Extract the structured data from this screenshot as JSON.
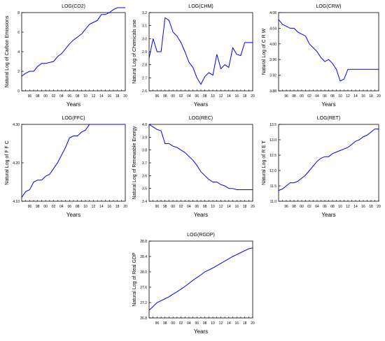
{
  "chart_data": [
    {
      "type": "line",
      "title": "LOG(CO2)",
      "ylabel": "Natural Log of Carbon Emissions",
      "xlabel": "Years",
      "x": [
        1994,
        1995,
        1996,
        1997,
        1998,
        1999,
        2000,
        2001,
        2002,
        2003,
        2004,
        2005,
        2006,
        2007,
        2008,
        2009,
        2010,
        2011,
        2012,
        2013,
        2014,
        2015,
        2016,
        2017,
        2018,
        2019,
        2020
      ],
      "y": [
        1.5,
        1.8,
        2.0,
        2.0,
        2.5,
        2.8,
        2.8,
        2.9,
        3.0,
        3.5,
        3.8,
        4.3,
        4.8,
        5.2,
        5.5,
        5.8,
        6.3,
        6.8,
        7.0,
        7.2,
        7.8,
        7.8,
        8.0,
        8.3,
        8.5,
        8.5,
        8.5
      ],
      "ylim": [
        0,
        8
      ],
      "xticks": [
        1996,
        1998,
        2000,
        2002,
        2004,
        2006,
        2008,
        2010,
        2012,
        2014,
        2016,
        2018,
        2020
      ],
      "xtick_labels": [
        "96",
        "98",
        "00",
        "02",
        "04",
        "06",
        "08",
        "10",
        "12",
        "14",
        "16",
        "18",
        "20"
      ],
      "yticks": [
        0,
        2,
        4,
        6,
        8
      ],
      "ytick_labels": [
        "0",
        "2",
        "4",
        "6",
        "8"
      ],
      "line_color": "#0000ff"
    },
    {
      "type": "line",
      "title": "LOG(CHM)",
      "ylabel": "Natural Log of Chemicals use",
      "xlabel": "Years",
      "x": [
        1994,
        1995,
        1996,
        1997,
        1998,
        1999,
        2000,
        2001,
        2002,
        2003,
        2004,
        2005,
        2006,
        2007,
        2008,
        2009,
        2010,
        2011,
        2012,
        2013,
        2014,
        2015,
        2016,
        2017,
        2018,
        2019,
        2020
      ],
      "y": [
        2.85,
        3.0,
        2.9,
        2.9,
        3.16,
        3.14,
        3.05,
        3.02,
        2.97,
        2.9,
        2.82,
        2.78,
        2.7,
        2.65,
        2.71,
        2.74,
        2.72,
        2.88,
        2.77,
        2.8,
        2.78,
        2.93,
        2.88,
        2.87,
        2.97,
        2.97,
        2.97
      ],
      "ylim": [
        2.6,
        3.2
      ],
      "xticks": [
        1996,
        1998,
        2000,
        2002,
        2004,
        2006,
        2008,
        2010,
        2012,
        2014,
        2016,
        2018,
        2020
      ],
      "xtick_labels": [
        "96",
        "98",
        "00",
        "02",
        "04",
        "06",
        "08",
        "10",
        "12",
        "14",
        "16",
        "18",
        "20"
      ],
      "yticks": [
        2.6,
        2.7,
        2.8,
        2.9,
        3.0,
        3.1,
        3.2
      ],
      "ytick_labels": [
        "2.6",
        "2.7",
        "2.8",
        "2.9",
        "3.0",
        "3.1",
        "3.2"
      ],
      "line_color": "#0000ff"
    },
    {
      "type": "line",
      "title": "LOG(CRW)",
      "ylabel": "Natural Log of C R W",
      "xlabel": "Years",
      "x": [
        1994,
        1995,
        1996,
        1997,
        1998,
        1999,
        2000,
        2001,
        2002,
        2003,
        2004,
        2005,
        2006,
        2007,
        2008,
        2009,
        2010,
        2011,
        2012,
        2013,
        2014,
        2015,
        2016,
        2017,
        2018,
        2019,
        2020
      ],
      "y": [
        4.062,
        4.05,
        4.045,
        4.04,
        4.04,
        4.03,
        4.025,
        4.02,
        4.0,
        3.99,
        3.98,
        3.965,
        3.955,
        3.96,
        3.95,
        3.935,
        3.905,
        3.91,
        3.935,
        3.935,
        3.935,
        3.935,
        3.935,
        3.935,
        3.935,
        3.935,
        3.935
      ],
      "ylim": [
        3.88,
        4.08
      ],
      "xticks": [
        1996,
        1998,
        2000,
        2002,
        2004,
        2006,
        2008,
        2010,
        2012,
        2014,
        2016,
        2018,
        2020
      ],
      "xtick_labels": [
        "96",
        "98",
        "00",
        "02",
        "04",
        "06",
        "08",
        "10",
        "12",
        "14",
        "16",
        "18",
        "20"
      ],
      "yticks": [
        3.88,
        3.92,
        3.96,
        4.0,
        4.04,
        4.08
      ],
      "ytick_labels": [
        "3.88",
        "3.92",
        "3.96",
        "4.00",
        "4.04",
        "4.08"
      ],
      "line_color": "#0000ff"
    },
    {
      "type": "line",
      "title": "LOG(FFC)",
      "ylabel": "Natural Log of F F C",
      "xlabel": "Years",
      "x": [
        1994,
        1995,
        1996,
        1997,
        1998,
        1999,
        2000,
        2001,
        2002,
        2003,
        2004,
        2005,
        2006,
        2007,
        2008,
        2009,
        2010,
        2011,
        2012,
        2013,
        2014,
        2015,
        2016,
        2017,
        2018,
        2019,
        2020
      ],
      "y": [
        4.11,
        4.125,
        4.13,
        4.15,
        4.155,
        4.155,
        4.165,
        4.17,
        4.185,
        4.2,
        4.22,
        4.24,
        4.265,
        4.27,
        4.27,
        4.28,
        4.285,
        4.3,
        4.3,
        4.3,
        4.3,
        4.3,
        4.3,
        4.3,
        4.3,
        4.3,
        4.3
      ],
      "ylim": [
        4.1,
        4.3
      ],
      "xticks": [
        1996,
        1998,
        2000,
        2002,
        2004,
        2006,
        2008,
        2010,
        2012,
        2014,
        2016,
        2018,
        2020
      ],
      "xtick_labels": [
        "96",
        "98",
        "00",
        "02",
        "04",
        "06",
        "08",
        "10",
        "12",
        "14",
        "16",
        "18",
        "20"
      ],
      "yticks": [
        4.1,
        4.2,
        4.3
      ],
      "ytick_labels": [
        "4.10",
        "4.20",
        "4.30"
      ],
      "line_color": "#0000ff"
    },
    {
      "type": "line",
      "title": "LOG(REC)",
      "ylabel": "Natural Log of Renewable Energy",
      "xlabel": "Years",
      "x": [
        1994,
        1995,
        1996,
        1997,
        1998,
        1999,
        2000,
        2001,
        2002,
        2003,
        2004,
        2005,
        2006,
        2007,
        2008,
        2009,
        2010,
        2011,
        2012,
        2013,
        2014,
        2015,
        2016,
        2017,
        2018,
        2019,
        2020
      ],
      "y": [
        4.0,
        3.98,
        3.96,
        3.95,
        3.85,
        3.85,
        3.83,
        3.82,
        3.8,
        3.78,
        3.75,
        3.72,
        3.68,
        3.63,
        3.6,
        3.57,
        3.55,
        3.55,
        3.53,
        3.52,
        3.5,
        3.5,
        3.49,
        3.49,
        3.49,
        3.49,
        3.49
      ],
      "ylim": [
        3.4,
        4.0
      ],
      "xticks": [
        1996,
        1998,
        2000,
        2002,
        2004,
        2006,
        2008,
        2010,
        2012,
        2014,
        2016,
        2018,
        2020
      ],
      "xtick_labels": [
        "96",
        "98",
        "00",
        "02",
        "04",
        "06",
        "08",
        "10",
        "12",
        "14",
        "16",
        "18",
        "20"
      ],
      "yticks": [
        3.4,
        3.5,
        3.6,
        3.7,
        3.8,
        3.9,
        4.0
      ],
      "ytick_labels": [
        "3.4",
        "3.5",
        "3.6",
        "3.7",
        "3.8",
        "3.9",
        "4.0"
      ],
      "line_color": "#0000ff"
    },
    {
      "type": "line",
      "title": "LOG(RET)",
      "ylabel": "Natural Log of R E T",
      "xlabel": "Years",
      "x": [
        1994,
        1995,
        1996,
        1997,
        1998,
        1999,
        2000,
        2001,
        2002,
        2003,
        2004,
        2005,
        2006,
        2007,
        2008,
        2009,
        2010,
        2011,
        2012,
        2013,
        2014,
        2015,
        2016,
        2017,
        2018,
        2019,
        2020
      ],
      "y": [
        11.35,
        11.4,
        11.5,
        11.6,
        11.6,
        11.65,
        11.75,
        11.85,
        12.0,
        12.15,
        12.3,
        12.4,
        12.45,
        12.45,
        12.55,
        12.6,
        12.65,
        12.7,
        12.75,
        12.85,
        12.95,
        13.0,
        13.1,
        13.15,
        13.25,
        13.35,
        13.35
      ],
      "ylim": [
        11.0,
        13.5
      ],
      "xticks": [
        1996,
        1998,
        2000,
        2002,
        2004,
        2006,
        2008,
        2010,
        2012,
        2014,
        2016,
        2018,
        2020
      ],
      "xtick_labels": [
        "96",
        "98",
        "00",
        "02",
        "04",
        "06",
        "08",
        "10",
        "12",
        "14",
        "16",
        "18",
        "20"
      ],
      "yticks": [
        11.0,
        11.5,
        12.0,
        12.5,
        13.0,
        13.5
      ],
      "ytick_labels": [
        "11.0",
        "11.5",
        "12.0",
        "12.5",
        "13.0",
        "13.5"
      ],
      "line_color": "#0000ff"
    },
    {
      "type": "line",
      "title": "LOG(RGDP)",
      "ylabel": "Natural Log of Real GDP",
      "xlabel": "Years",
      "x": [
        1994,
        1995,
        1996,
        1997,
        1998,
        1999,
        2000,
        2001,
        2002,
        2003,
        2004,
        2005,
        2006,
        2007,
        2008,
        2009,
        2010,
        2011,
        2012,
        2013,
        2014,
        2015,
        2016,
        2017,
        2018,
        2019,
        2020
      ],
      "y": [
        27.0,
        27.1,
        27.2,
        27.25,
        27.3,
        27.35,
        27.42,
        27.48,
        27.55,
        27.62,
        27.7,
        27.78,
        27.85,
        27.92,
        28.0,
        28.05,
        28.1,
        28.16,
        28.22,
        28.28,
        28.34,
        28.4,
        28.45,
        28.5,
        28.55,
        28.6,
        28.62
      ],
      "ylim": [
        26.8,
        28.8
      ],
      "xticks": [
        1996,
        1998,
        2000,
        2002,
        2004,
        2006,
        2008,
        2010,
        2012,
        2014,
        2016,
        2018,
        2020
      ],
      "xtick_labels": [
        "96",
        "98",
        "00",
        "02",
        "04",
        "06",
        "08",
        "10",
        "12",
        "14",
        "16",
        "18",
        "20"
      ],
      "yticks": [
        26.8,
        27.2,
        27.6,
        28.0,
        28.4,
        28.8
      ],
      "ytick_labels": [
        "26.8",
        "27.2",
        "27.6",
        "28.0",
        "28.4",
        "28.8"
      ],
      "line_color": "#0000ff"
    }
  ]
}
